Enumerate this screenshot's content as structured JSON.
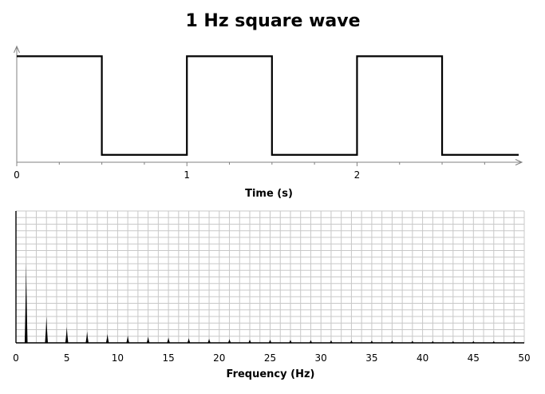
{
  "title": "1 Hz square wave",
  "chart_data": [
    {
      "type": "line",
      "xlabel": "Time (s)",
      "ylabel": "",
      "x_ticks": [
        "0",
        "1",
        "2"
      ],
      "x_tick_values": [
        0,
        1,
        2
      ],
      "xlim": [
        0,
        2.95
      ],
      "ylim": [
        -1.15,
        1.2
      ],
      "grid": false,
      "series": [
        {
          "x": [
            0,
            0.5,
            0.5,
            1,
            1,
            1.5,
            1.5,
            2,
            2,
            2.5,
            2.5,
            2.95
          ],
          "y": [
            1,
            1,
            -1,
            -1,
            1,
            1,
            -1,
            -1,
            1,
            1,
            -1,
            -1
          ]
        }
      ],
      "color": "#000000"
    },
    {
      "type": "bar",
      "xlabel": "Frequency (Hz)",
      "ylabel": "",
      "x_ticks": [
        "0",
        "5",
        "10",
        "15",
        "20",
        "25",
        "30",
        "35",
        "40",
        "45",
        "50"
      ],
      "x_tick_values": [
        0,
        5,
        10,
        15,
        20,
        25,
        30,
        35,
        40,
        45,
        50
      ],
      "xlim": [
        0,
        50
      ],
      "ylim": [
        0,
        1.65
      ],
      "grid": true,
      "x": [
        1,
        3,
        5,
        7,
        9,
        11,
        13,
        15,
        17,
        19,
        21,
        23,
        25,
        27,
        29,
        31,
        33,
        35,
        37,
        39,
        41,
        43,
        45,
        47,
        49
      ],
      "values": [
        1.0,
        0.333,
        0.2,
        0.143,
        0.111,
        0.091,
        0.077,
        0.067,
        0.059,
        0.053,
        0.048,
        0.043,
        0.04,
        0.037,
        0.034,
        0.032,
        0.03,
        0.029,
        0.027,
        0.026,
        0.024,
        0.023,
        0.022,
        0.021,
        0.02
      ],
      "color": "#000000",
      "grid_color": "#c8c8c8"
    }
  ]
}
